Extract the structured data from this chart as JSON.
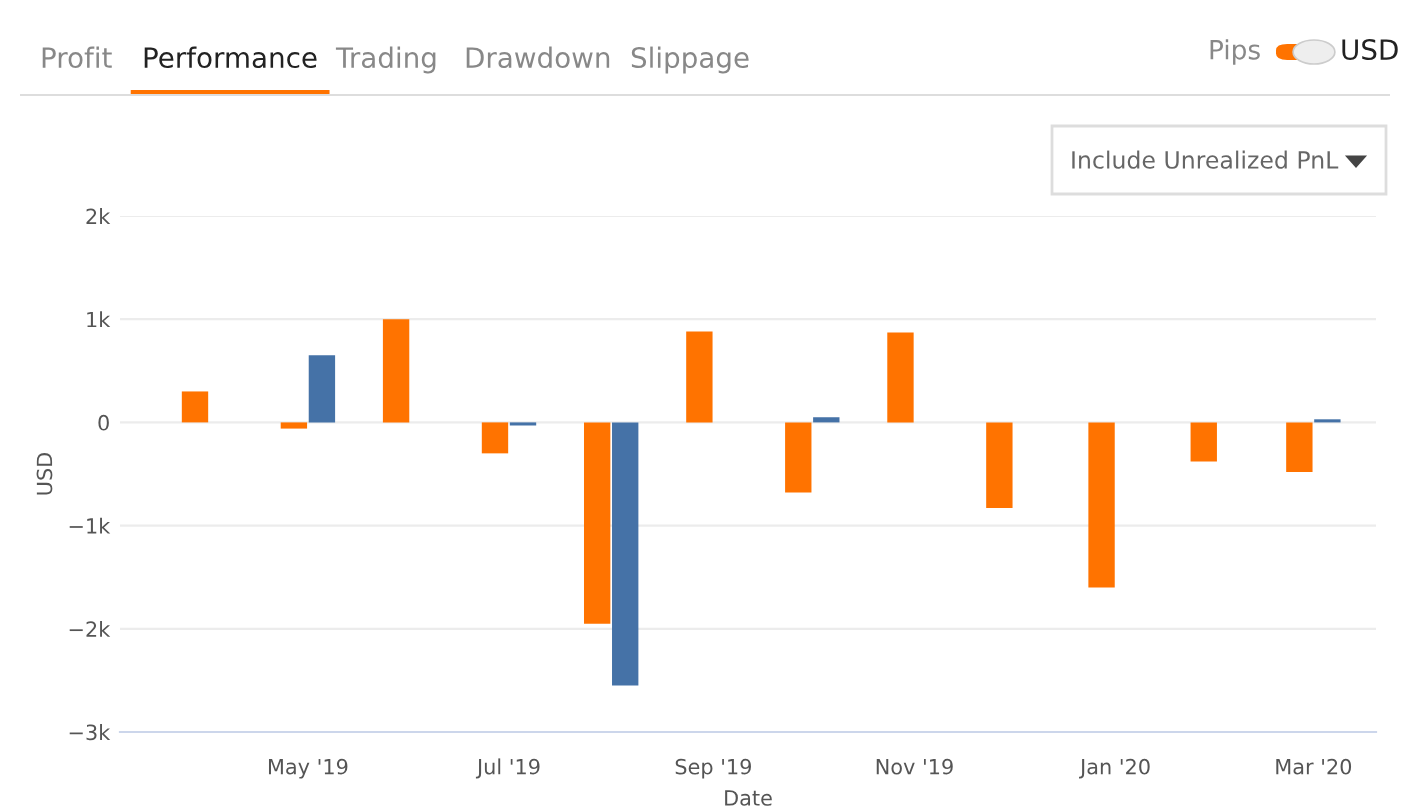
{
  "chart_data": {
    "type": "bar",
    "xlabel": "Date",
    "ylabel": "USD",
    "x": [
      "2019-04",
      "2019-05",
      "2019-06",
      "2019-07",
      "2019-08",
      "2019-09",
      "2019-10",
      "2019-11",
      "2019-12",
      "2020-01",
      "2020-02",
      "2020-03"
    ],
    "series": [
      {
        "color": "#ff7300",
        "values": [
          300,
          -60,
          1000,
          -300,
          -1950,
          880,
          -680,
          870,
          -830,
          -1600,
          -380,
          -480
        ]
      },
      {
        "color": "#4572a7",
        "values": [
          null,
          650,
          null,
          -30,
          -2550,
          null,
          50,
          null,
          null,
          null,
          null,
          30
        ]
      }
    ],
    "xlim": [
      "2019-03-05",
      "2020-03-20"
    ],
    "xticks": [
      {
        "value": "2019-05-01",
        "label": "May '19"
      },
      {
        "value": "2019-07-01",
        "label": "Jul '19"
      },
      {
        "value": "2019-09-01",
        "label": "Sep '19"
      },
      {
        "value": "2019-11-01",
        "label": "Nov '19"
      },
      {
        "value": "2020-01-01",
        "label": "Jan '20"
      },
      {
        "value": "2020-03-01",
        "label": "Mar '20"
      }
    ],
    "ylim": [
      -3000,
      2000
    ],
    "yticks": [
      {
        "value": -3000,
        "label": "−3k"
      },
      {
        "value": -2000,
        "label": "−2k"
      },
      {
        "value": -1000,
        "label": "−1k"
      },
      0,
      {
        "value": 1000,
        "label": "1k"
      },
      {
        "value": 2000,
        "label": "2k"
      }
    ],
    "grid": "y",
    "legend": false,
    "annotations": [
      "Profit",
      "Performance",
      "Trading",
      "Drawdown",
      "Slippage",
      "Pips",
      "USD",
      "Include Unrealized PnL"
    ]
  }
}
